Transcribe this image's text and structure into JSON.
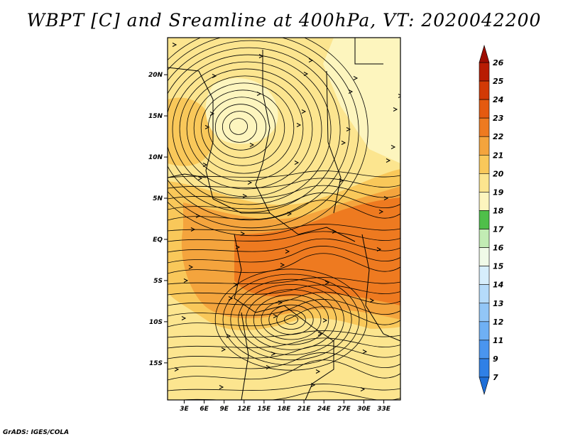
{
  "chart_data": {
    "type": "heatmap",
    "title": "WBPT [C] and Sreamline at 400hPa, VT: 2020042200",
    "x_ticks": [
      "3E",
      "6E",
      "9E",
      "12E",
      "15E",
      "18E",
      "21E",
      "24E",
      "27E",
      "30E",
      "33E"
    ],
    "y_ticks": [
      "20N",
      "15N",
      "10N",
      "5N",
      "EQ",
      "5S",
      "10S",
      "15S"
    ],
    "xlim": [
      "0.5E",
      "35.5E"
    ],
    "ylim": [
      "19.5S",
      "24.5N"
    ],
    "overlay": "streamlines with cyclonic circulation centred near 14N, 11E",
    "colorbar": {
      "levels": [
        "7",
        "9",
        "11",
        "12",
        "13",
        "14",
        "15",
        "16",
        "17",
        "18",
        "19",
        "20",
        "21",
        "22",
        "23",
        "24",
        "25",
        "26"
      ],
      "colors": [
        "#1e6fd8",
        "#2f80e6",
        "#4a95ef",
        "#6fb0f4",
        "#92c6f7",
        "#b5dbfa",
        "#d6eefc",
        "#f0fae8",
        "#c2ecb4",
        "#8fda82",
        "#4fbf4a",
        "#fdf5be",
        "#fce58f",
        "#f9c85a",
        "#f4a43d",
        "#ee7a20",
        "#e55a10",
        "#d23a06",
        "#b81c03",
        "#9e0d02"
      ]
    },
    "grid": false,
    "legend_position": "right"
  },
  "footer": {
    "credit": "GrADS: IGES/COLA"
  }
}
